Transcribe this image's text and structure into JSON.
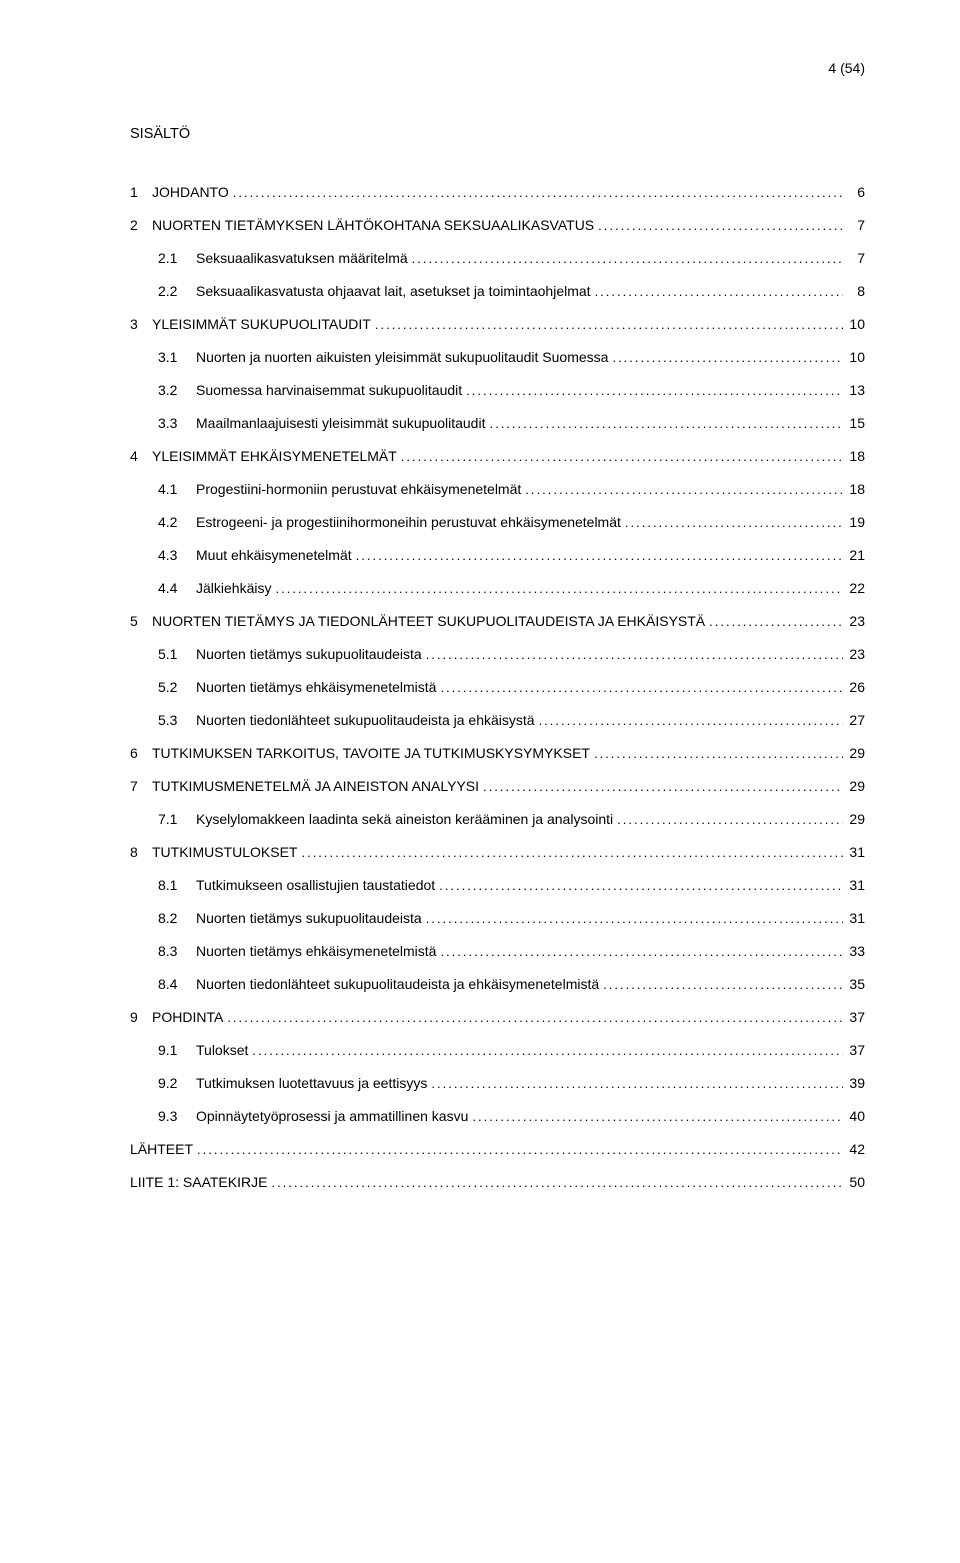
{
  "page_number": "4 (54)",
  "toc_title": "SISÄLTÖ",
  "font": {
    "family": "Verdana",
    "size_pt": 11,
    "color": "#000000"
  },
  "background_color": "#ffffff",
  "entries": [
    {
      "level": 1,
      "num": "1",
      "label": "JOHDANTO",
      "page": "6",
      "gap": true
    },
    {
      "level": 1,
      "num": "2",
      "label": "NUORTEN TIETÄMYKSEN LÄHTÖKOHTANA SEKSUAALIKASVATUS",
      "page": "7",
      "gap": true
    },
    {
      "level": 2,
      "num": "2.1",
      "label": "Seksuaalikasvatuksen määritelmä",
      "page": "7",
      "gap": true
    },
    {
      "level": 2,
      "num": "2.2",
      "label": "Seksuaalikasvatusta ohjaavat lait, asetukset ja toimintaohjelmat",
      "page": "8",
      "gap": true
    },
    {
      "level": 1,
      "num": "3",
      "label": "YLEISIMMÄT SUKUPUOLITAUDIT",
      "page": "10",
      "gap": true
    },
    {
      "level": 2,
      "num": "3.1",
      "label": "Nuorten ja nuorten aikuisten yleisimmät sukupuolitaudit Suomessa",
      "page": "10",
      "gap": true
    },
    {
      "level": 2,
      "num": "3.2",
      "label": "Suomessa harvinaisemmat sukupuolitaudit",
      "page": "13",
      "gap": true
    },
    {
      "level": 2,
      "num": "3.3",
      "label": "Maailmanlaajuisesti yleisimmät sukupuolitaudit",
      "page": "15",
      "gap": true
    },
    {
      "level": 1,
      "num": "4",
      "label": "YLEISIMMÄT EHKÄISYMENETELMÄT",
      "page": "18",
      "gap": true
    },
    {
      "level": 2,
      "num": "4.1",
      "label": "Progestiini-hormoniin perustuvat ehkäisymenetelmät",
      "page": "18",
      "gap": true
    },
    {
      "level": 2,
      "num": "4.2",
      "label": "Estrogeeni- ja progestiinihormoneihin perustuvat ehkäisymenetelmät",
      "page": "19",
      "gap": true
    },
    {
      "level": 2,
      "num": "4.3",
      "label": "Muut ehkäisymenetelmät",
      "page": "21",
      "gap": true
    },
    {
      "level": 2,
      "num": "4.4",
      "label": "Jälkiehkäisy",
      "page": "22",
      "gap": true
    },
    {
      "level": 1,
      "num": "5",
      "label": "NUORTEN TIETÄMYS JA TIEDONLÄHTEET SUKUPUOLITAUDEISTA JA EHKÄISYSTÄ",
      "page": "23",
      "gap": true
    },
    {
      "level": 2,
      "num": "5.1",
      "label": "Nuorten tietämys sukupuolitaudeista",
      "page": "23",
      "gap": true
    },
    {
      "level": 2,
      "num": "5.2",
      "label": "Nuorten tietämys ehkäisymenetelmistä",
      "page": "26",
      "gap": true
    },
    {
      "level": 2,
      "num": "5.3",
      "label": "Nuorten tiedonlähteet sukupuolitaudeista ja ehkäisystä",
      "page": "27",
      "gap": true
    },
    {
      "level": 1,
      "num": "6",
      "label": "TUTKIMUKSEN TARKOITUS, TAVOITE JA TUTKIMUSKYSYMYKSET",
      "page": "29",
      "gap": true
    },
    {
      "level": 1,
      "num": "7",
      "label": "TUTKIMUSMENETELMÄ JA AINEISTON ANALYYSI",
      "page": "29",
      "gap": true
    },
    {
      "level": 2,
      "num": "7.1",
      "label": "Kyselylomakkeen laadinta sekä aineiston kerääminen ja analysointi",
      "page": "29",
      "gap": true
    },
    {
      "level": 1,
      "num": "8",
      "label": "TUTKIMUSTULOKSET",
      "page": "31",
      "gap": true
    },
    {
      "level": 2,
      "num": "8.1",
      "label": "Tutkimukseen osallistujien taustatiedot",
      "page": "31",
      "gap": true
    },
    {
      "level": 2,
      "num": "8.2",
      "label": "Nuorten tietämys sukupuolitaudeista",
      "page": "31",
      "gap": true
    },
    {
      "level": 2,
      "num": "8.3",
      "label": "Nuorten tietämys ehkäisymenetelmistä",
      "page": "33",
      "gap": true
    },
    {
      "level": 2,
      "num": "8.4",
      "label": "Nuorten tiedonlähteet sukupuolitaudeista ja ehkäisymenetelmistä",
      "page": "35",
      "gap": true
    },
    {
      "level": 1,
      "num": "9",
      "label": "POHDINTA",
      "page": "37",
      "gap": true
    },
    {
      "level": 2,
      "num": "9.1",
      "label": "Tulokset",
      "page": "37",
      "gap": true
    },
    {
      "level": 2,
      "num": "9.2",
      "label": "Tutkimuksen luotettavuus ja eettisyys",
      "page": "39",
      "gap": true
    },
    {
      "level": 2,
      "num": "9.3",
      "label": "Opinnäytetyöprosessi ja ammatillinen kasvu",
      "page": "40",
      "gap": true
    },
    {
      "level": 1,
      "num": "",
      "label": "LÄHTEET",
      "page": "42",
      "gap": true
    },
    {
      "level": 1,
      "num": "",
      "label": "LIITE 1: SAATEKIRJE",
      "page": "50",
      "gap": true
    }
  ]
}
